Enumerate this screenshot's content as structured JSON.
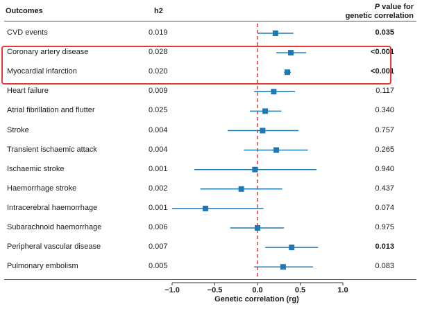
{
  "headers": {
    "outcomes": "Outcomes",
    "h2": "h2",
    "p_value_line1_italic": "P",
    "p_value_line1_rest": " value for",
    "p_value_line2": "genetic correlation"
  },
  "chart_data": {
    "type": "forest",
    "title": "",
    "xlabel": "Genetic correlation (rg)",
    "xlim": [
      -1.0,
      1.0
    ],
    "xticks": [
      -1.0,
      -0.5,
      0.0,
      0.5,
      1.0
    ],
    "xtick_labels": [
      "−1.0",
      "−0.5",
      "0.0",
      "0.5",
      "1.0"
    ],
    "reference_line": 0.0,
    "colors": {
      "marker": "#1f77b4",
      "reference": "#e53935",
      "highlight": "#e53935"
    },
    "rows": [
      {
        "outcome": "CVD events",
        "h2": "0.019",
        "rg": 0.21,
        "ci": [
          0.0,
          0.42
        ],
        "p": "0.035",
        "p_bold": true
      },
      {
        "outcome": "Coronary artery disease",
        "h2": "0.028",
        "rg": 0.39,
        "ci": [
          0.22,
          0.57
        ],
        "p": "<0.001",
        "p_bold": true
      },
      {
        "outcome": "Myocardial infarction",
        "h2": "0.020",
        "rg": 0.35,
        "ci": [
          0.31,
          0.39
        ],
        "p": "<0.001",
        "p_bold": true
      },
      {
        "outcome": "Heart failure",
        "h2": "0.009",
        "rg": 0.19,
        "ci": [
          -0.04,
          0.44
        ],
        "p": "0.117",
        "p_bold": false
      },
      {
        "outcome": "Atrial fibrillation and flutter",
        "h2": "0.025",
        "rg": 0.09,
        "ci": [
          -0.09,
          0.28
        ],
        "p": "0.340",
        "p_bold": false
      },
      {
        "outcome": "Stroke",
        "h2": "0.004",
        "rg": 0.06,
        "ci": [
          -0.35,
          0.48
        ],
        "p": "0.757",
        "p_bold": false
      },
      {
        "outcome": "Transient ischaemic attack",
        "h2": "0.004",
        "rg": 0.22,
        "ci": [
          -0.16,
          0.59
        ],
        "p": "0.265",
        "p_bold": false
      },
      {
        "outcome": "Ischaemic stroke",
        "h2": "0.001",
        "rg": -0.03,
        "ci": [
          -0.74,
          0.69
        ],
        "p": "0.940",
        "p_bold": false
      },
      {
        "outcome": "Haemorrhage stroke",
        "h2": "0.002",
        "rg": -0.19,
        "ci": [
          -0.67,
          0.29
        ],
        "p": "0.437",
        "p_bold": false
      },
      {
        "outcome": "Intracerebral haemorrhage",
        "h2": "0.001",
        "rg": -0.61,
        "ci": [
          -1.0,
          0.07
        ],
        "p": "0.074",
        "p_bold": false
      },
      {
        "outcome": "Subarachnoid haemorrhage",
        "h2": "0.006",
        "rg": 0.0,
        "ci": [
          -0.32,
          0.31
        ],
        "p": "0.975",
        "p_bold": false
      },
      {
        "outcome": "Peripheral vascular disease",
        "h2": "0.007",
        "rg": 0.4,
        "ci": [
          0.09,
          0.71
        ],
        "p": "0.013",
        "p_bold": true
      },
      {
        "outcome": "Pulmonary embolism",
        "h2": "0.005",
        "rg": 0.3,
        "ci": [
          -0.04,
          0.65
        ],
        "p": "0.083",
        "p_bold": false
      }
    ]
  }
}
